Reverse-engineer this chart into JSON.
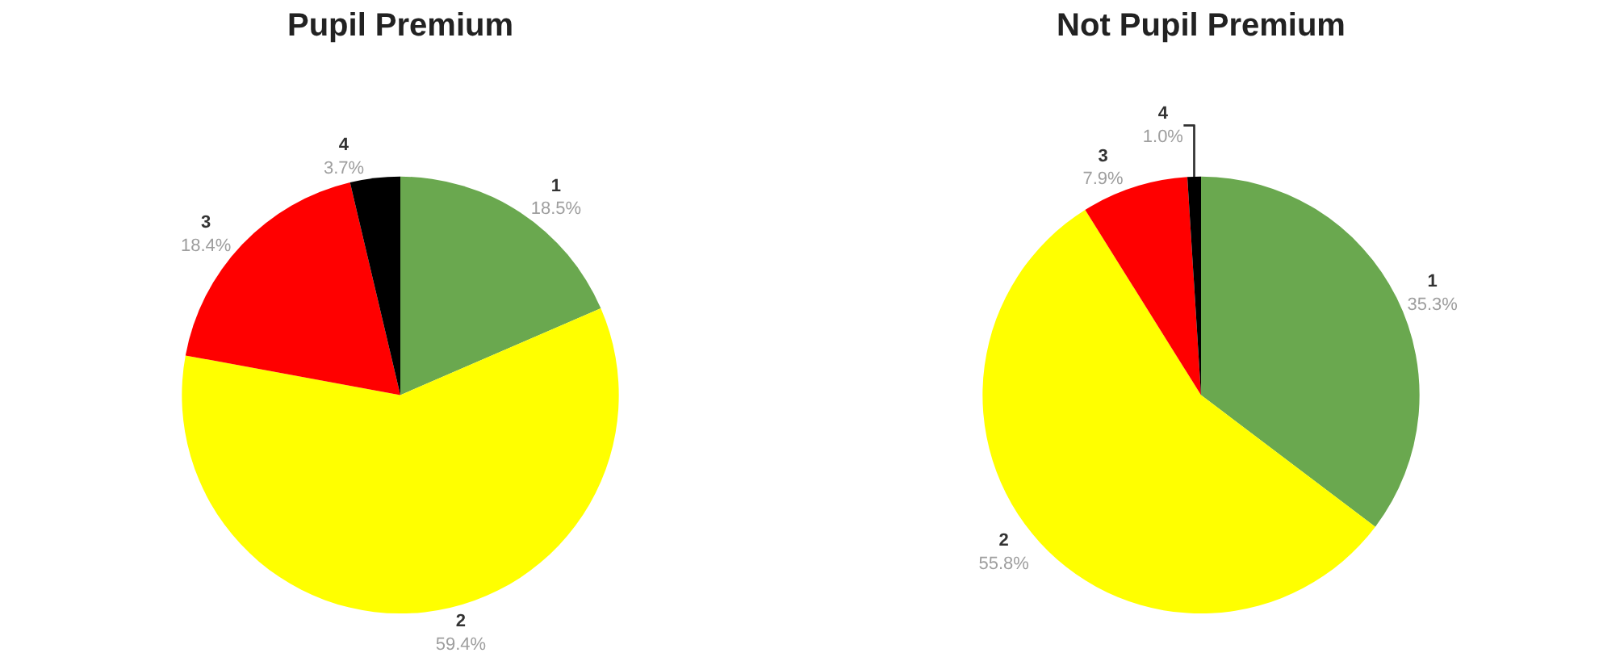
{
  "chart_data": [
    {
      "type": "pie",
      "title": "Pupil Premium",
      "categories": [
        "1",
        "2",
        "3",
        "4"
      ],
      "values": [
        18.5,
        59.4,
        18.4,
        3.7
      ],
      "value_labels": [
        "18.5%",
        "59.4%",
        "18.4%",
        "3.7%"
      ],
      "colors": [
        "#6aa84f",
        "#ffff00",
        "#ff0000",
        "#000000"
      ],
      "legend": false
    },
    {
      "type": "pie",
      "title": "Not Pupil Premium",
      "categories": [
        "1",
        "2",
        "3",
        "4"
      ],
      "values": [
        35.3,
        55.8,
        7.9,
        1.0
      ],
      "value_labels": [
        "35.3%",
        "55.8%",
        "7.9%",
        "1.0%"
      ],
      "colors": [
        "#6aa84f",
        "#ffff00",
        "#ff0000",
        "#000000"
      ],
      "legend": false
    }
  ]
}
